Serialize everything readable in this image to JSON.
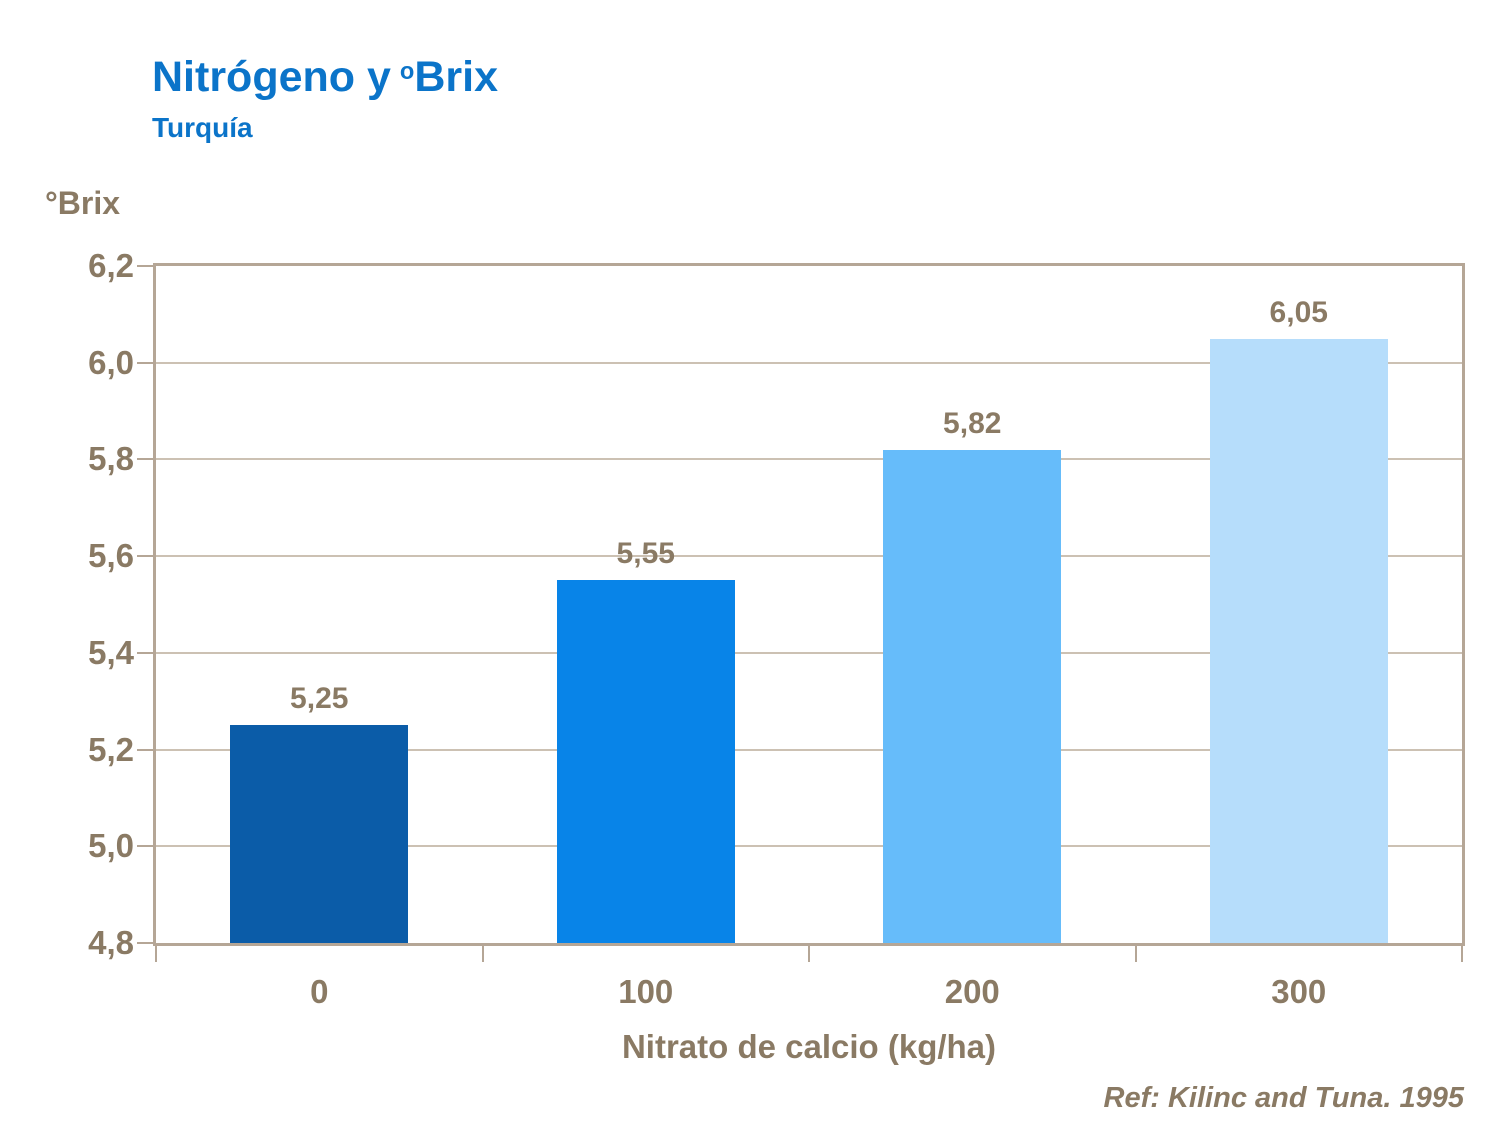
{
  "colors": {
    "title_blue": "#0b74c9",
    "text_brown": "#8a7a64",
    "axis_tan": "#b5a696",
    "gridline": "#ccc1b3"
  },
  "header": {
    "title_main": "Nitrógeno y",
    "title_sup": "o",
    "title_rest": "Brix",
    "subtitle": "Turquía"
  },
  "footer": {
    "reference": "Ref: Kilinc and Tuna. 1995"
  },
  "chart_data": {
    "type": "bar",
    "title": "Nitrógeno y oBrix",
    "subtitle": "Turquía",
    "categories": [
      "0",
      "100",
      "200",
      "300"
    ],
    "values": [
      5.25,
      5.55,
      5.82,
      6.05
    ],
    "value_labels": [
      "5,25",
      "5,55",
      "5,82",
      "6,05"
    ],
    "bar_colors": [
      "#0b5ca8",
      "#0884e8",
      "#66bcfa",
      "#b6ddfb"
    ],
    "xlabel": "Nitrato de calcio (kg/ha)",
    "ylabel": "°Brix",
    "ylim": [
      4.8,
      6.2
    ],
    "ytick_step": 0.2,
    "ytick_labels": [
      "4,8",
      "5,0",
      "5,2",
      "5,4",
      "5,6",
      "5,8",
      "6,0",
      "6,2"
    ],
    "grid": true,
    "legend": false
  }
}
